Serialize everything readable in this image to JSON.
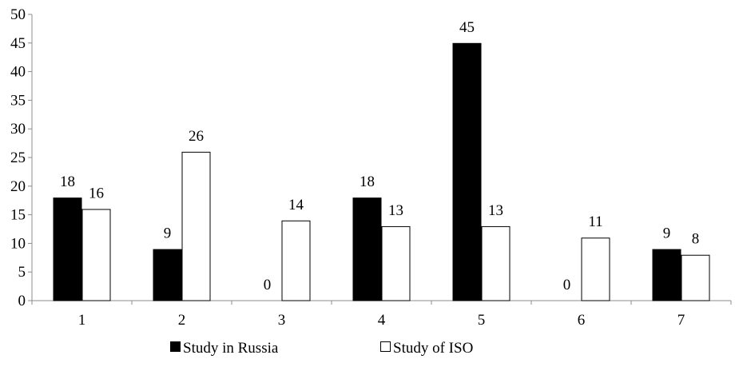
{
  "chart_data": {
    "type": "bar",
    "title": "",
    "xlabel": "",
    "ylabel": "",
    "categories": [
      "1",
      "2",
      "3",
      "4",
      "5",
      "6",
      "7"
    ],
    "series": [
      {
        "name": "Study in Russia",
        "values": [
          18,
          9,
          0,
          18,
          45,
          0,
          9
        ],
        "color": "#000000"
      },
      {
        "name": "Study of ISO",
        "values": [
          16,
          26,
          14,
          13,
          13,
          11,
          8
        ],
        "color": "#ffffff"
      }
    ],
    "ylim": [
      0,
      50
    ],
    "yticks": [
      "0",
      "5",
      "10",
      "15",
      "20",
      "25",
      "30",
      "35",
      "40",
      "45",
      "50"
    ],
    "grid": false,
    "legend_position": "bottom",
    "data_labels": true
  }
}
